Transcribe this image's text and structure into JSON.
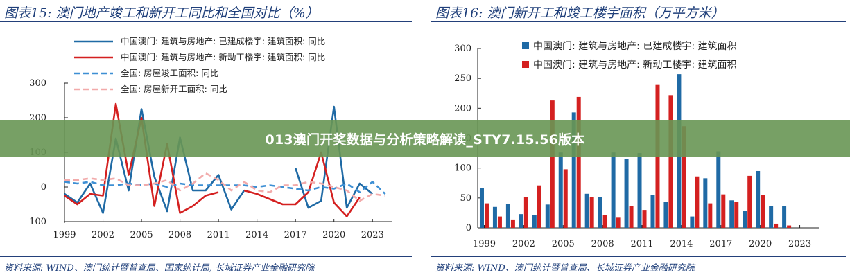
{
  "banner": {
    "text": "013澳门开奖数据与分析策略解读_STY7.15.56版本"
  },
  "chart_data": [
    {
      "type": "line",
      "figure_title": "图表15:  澳门地产竣工和新开工同比和全国对比（%）",
      "source": "资料来源: WIND、澳门统计暨普查局、国家统计局, 长城证券产业金融研究院",
      "x": [
        1999,
        2000,
        2001,
        2002,
        2003,
        2004,
        2005,
        2006,
        2007,
        2008,
        2009,
        2010,
        2011,
        2012,
        2013,
        2014,
        2015,
        2016,
        2017,
        2018,
        2019,
        2020,
        2021,
        2022,
        2023,
        2024
      ],
      "x_ticks": [
        1999,
        2002,
        2005,
        2008,
        2011,
        2014,
        2017,
        2020,
        2023
      ],
      "ylim": [
        -100,
        300
      ],
      "y_ticks": [
        -100,
        0,
        100,
        200,
        300
      ],
      "grid": false,
      "legend_position": "top",
      "series": [
        {
          "name": "中国澳门: 建筑与房地产: 已建成楼宇: 建筑面积: 同比",
          "color": "#1f6aa5",
          "dash": "solid",
          "values": [
            -20,
            -45,
            10,
            -75,
            140,
            -10,
            225,
            30,
            -70,
            143,
            -10,
            -10,
            35,
            -65,
            -10,
            null,
            null,
            null,
            55,
            -60,
            -40,
            232,
            -60,
            10,
            -20,
            null
          ]
        },
        {
          "name": "中国澳门: 建筑与房地产: 新动工楼宇: 建筑面积: 同比",
          "color": "#d42020",
          "dash": "solid",
          "values": [
            -25,
            -50,
            -20,
            -25,
            240,
            35,
            200,
            -55,
            125,
            -75,
            -55,
            -25,
            -15,
            null,
            -10,
            -20,
            -35,
            -50,
            -50,
            -15,
            100,
            -45,
            -85,
            -30,
            null,
            null
          ]
        },
        {
          "name": "全国: 房屋竣工面积: 同比",
          "color": "#3d8fd4",
          "dash": "dash",
          "values": [
            15,
            10,
            15,
            5,
            5,
            10,
            5,
            10,
            0,
            10,
            5,
            5,
            5,
            5,
            5,
            0,
            5,
            0,
            -5,
            -10,
            0,
            -5,
            10,
            -15,
            15,
            -20
          ]
        },
        {
          "name": "全国: 房屋新开工面积: 同比",
          "color": "#f2aaaa",
          "dash": "dash",
          "values": [
            20,
            20,
            25,
            20,
            25,
            5,
            5,
            10,
            20,
            -10,
            10,
            40,
            20,
            -10,
            15,
            -10,
            -15,
            5,
            5,
            15,
            10,
            0,
            -10,
            -40,
            -20,
            -25
          ]
        }
      ]
    },
    {
      "type": "bar",
      "figure_title": "图表16:  澳门新开工和竣工楼宇面积（万平方米）",
      "source": "资料来源:  WIND、澳门统计暨普查局、长城证券产业金融研究院",
      "x": [
        1999,
        2000,
        2001,
        2002,
        2003,
        2004,
        2005,
        2006,
        2007,
        2008,
        2009,
        2010,
        2011,
        2012,
        2013,
        2014,
        2015,
        2016,
        2017,
        2018,
        2019,
        2020,
        2021,
        2022,
        2023,
        2024
      ],
      "x_ticks": [
        1999,
        2002,
        2005,
        2008,
        2011,
        2014,
        2017,
        2020,
        2023
      ],
      "ylim": [
        0,
        300
      ],
      "y_ticks": [
        0,
        50,
        100,
        150,
        200,
        250,
        300
      ],
      "grid": false,
      "legend_position": "top",
      "series": [
        {
          "name": "中国澳门: 建筑与房地产: 已建成楼宇: 建筑面积",
          "color": "#1f6aa5",
          "values": [
            66,
            35,
            40,
            23,
            21,
            39,
            126,
            193,
            57,
            52,
            126,
            115,
            125,
            55,
            44,
            257,
            19,
            83,
            128,
            46,
            28,
            95,
            37,
            37,
            null,
            null
          ]
        },
        {
          "name": "中国澳门: 建筑与房地产: 新动工楼宇: 建筑面积",
          "color": "#d42020",
          "values": [
            41,
            19,
            14,
            52,
            71,
            213,
            98,
            219,
            52,
            22,
            17,
            36,
            30,
            239,
            222,
            170,
            86,
            41,
            56,
            43,
            87,
            55,
            7,
            4,
            null,
            null
          ]
        }
      ]
    }
  ]
}
